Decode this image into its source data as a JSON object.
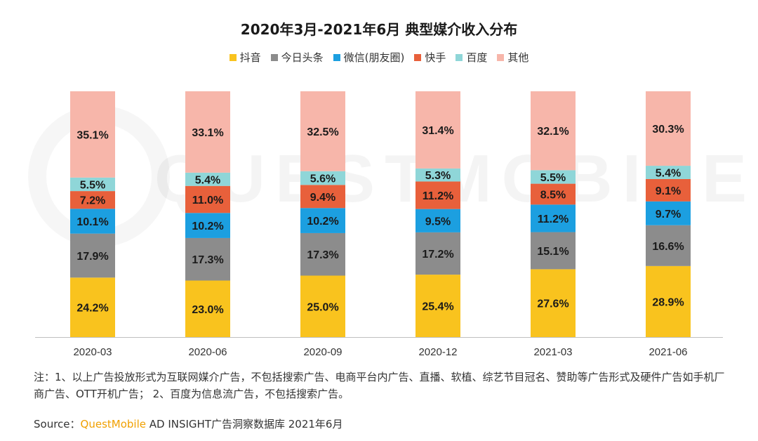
{
  "chart_data": {
    "type": "bar",
    "stacked": true,
    "title": "2020年3月-2021年6月 典型媒介收入分布",
    "categories": [
      "2020-03",
      "2020-06",
      "2020-09",
      "2020-12",
      "2021-03",
      "2021-06"
    ],
    "ylim": [
      0,
      100
    ],
    "legend_position": "top-center",
    "series": [
      {
        "name": "抖音",
        "color": "#f9c31e",
        "values": [
          24.2,
          23.0,
          25.0,
          25.4,
          27.6,
          28.9
        ],
        "labels": [
          "24.2%",
          "23.0%",
          "25.0%",
          "25.4%",
          "27.6%",
          "28.9%"
        ]
      },
      {
        "name": "今日头条",
        "color": "#8c8c8c",
        "values": [
          17.9,
          17.3,
          17.3,
          17.2,
          15.1,
          16.6
        ],
        "labels": [
          "17.9%",
          "17.3%",
          "17.3%",
          "17.2%",
          "15.1%",
          "16.6%"
        ]
      },
      {
        "name": "微信(朋友圈)",
        "color": "#1c9fe0",
        "values": [
          10.1,
          10.2,
          10.2,
          9.5,
          11.2,
          9.7
        ],
        "labels": [
          "10.1%",
          "10.2%",
          "10.2%",
          "9.5%",
          "11.2%",
          "9.7%"
        ]
      },
      {
        "name": "快手",
        "color": "#e8603b",
        "values": [
          7.2,
          11.0,
          9.4,
          11.2,
          8.5,
          9.1
        ],
        "labels": [
          "7.2%",
          "11.0%",
          "9.4%",
          "11.2%",
          "8.5%",
          "9.1%"
        ]
      },
      {
        "name": "百度",
        "color": "#8fd6d8",
        "values": [
          5.5,
          5.4,
          5.6,
          5.3,
          5.5,
          5.4
        ],
        "labels": [
          "5.5%",
          "5.4%",
          "5.6%",
          "5.3%",
          "5.5%",
          "5.4%"
        ]
      },
      {
        "name": "其他",
        "color": "#f7b6aa",
        "values": [
          35.1,
          33.1,
          32.5,
          31.4,
          32.1,
          30.3
        ],
        "labels": [
          "35.1%",
          "33.1%",
          "32.5%",
          "31.4%",
          "32.1%",
          "30.3%"
        ]
      }
    ]
  },
  "note": "注：1、以上广告投放形式为互联网媒介广告，不包括搜索广告、电商平台内广告、直播、软植、综艺节目冠名、赞助等广告形式及硬件广告如手机厂商广告、OTT开机广告； 2、百度为信息流广告，不包括搜索广告。",
  "source": {
    "prefix": "Source：",
    "brand": "QuestMobile",
    "rest": " AD INSIGHT广告洞察数据库 2021年6月"
  },
  "watermark": "QUESTMOBILE"
}
